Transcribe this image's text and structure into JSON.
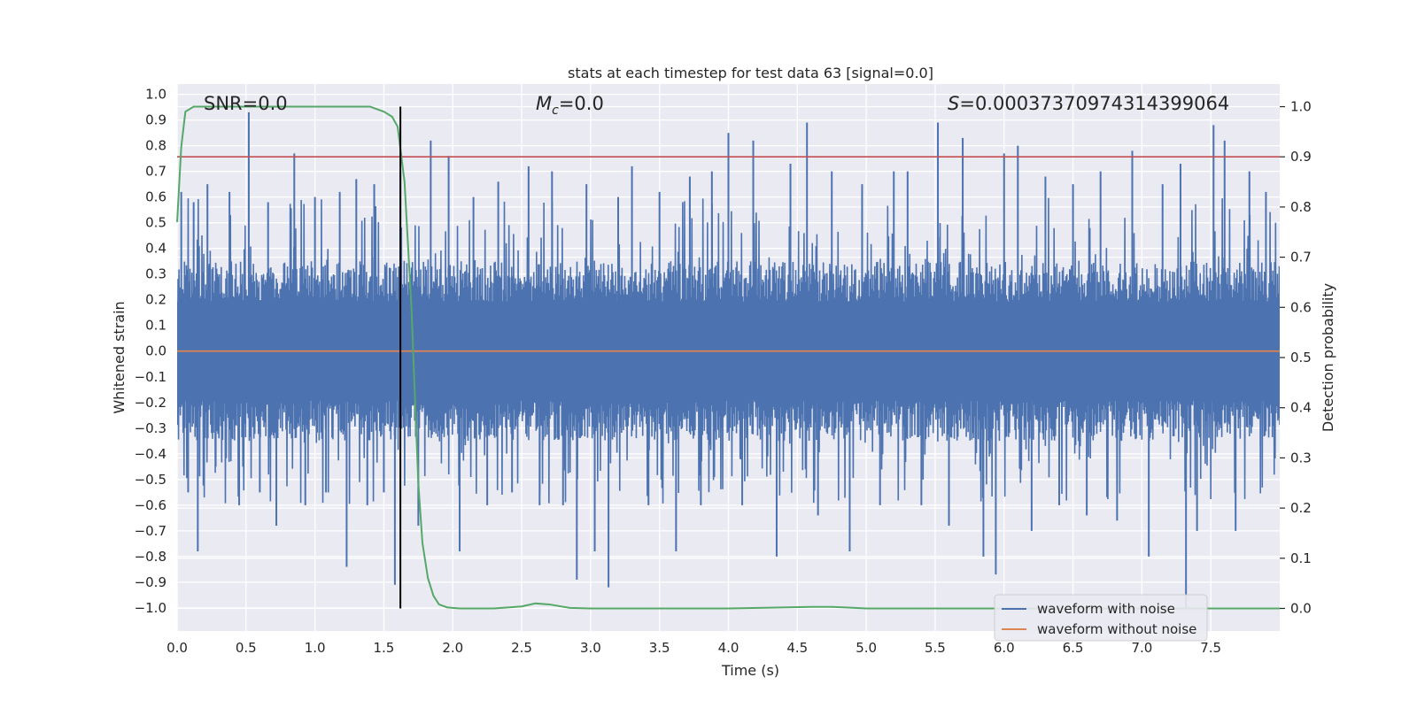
{
  "chart_data": {
    "type": "line",
    "title": "stats at each timestep for test data 63 [signal=0.0]",
    "xlabel": "Time (s)",
    "ylabel_left": "Whitened strain",
    "ylabel_right": "Detection probability",
    "xlim": [
      0.0,
      8.0
    ],
    "ylim_left": [
      -1.09,
      1.04
    ],
    "ylim_right": [
      -0.045,
      1.045
    ],
    "x_ticks": [
      "0.0",
      "0.5",
      "1.0",
      "1.5",
      "2.0",
      "2.5",
      "3.0",
      "3.5",
      "4.0",
      "4.5",
      "5.0",
      "5.5",
      "6.0",
      "6.5",
      "7.0",
      "7.5"
    ],
    "x_tick_values": [
      0.0,
      0.5,
      1.0,
      1.5,
      2.0,
      2.5,
      3.0,
      3.5,
      4.0,
      4.5,
      5.0,
      5.5,
      6.0,
      6.5,
      7.0,
      7.5
    ],
    "y_left_ticks": [
      "1.0",
      "0.9",
      "0.8",
      "0.7",
      "0.6",
      "0.5",
      "0.4",
      "0.3",
      "0.2",
      "0.1",
      "0.0",
      "−0.1",
      "−0.2",
      "−0.3",
      "−0.4",
      "−0.5",
      "−0.6",
      "−0.7",
      "−0.8",
      "−0.9",
      "−1.0"
    ],
    "y_left_tick_values": [
      1.0,
      0.9,
      0.8,
      0.7,
      0.6,
      0.5,
      0.4,
      0.3,
      0.2,
      0.1,
      0.0,
      -0.1,
      -0.2,
      -0.3,
      -0.4,
      -0.5,
      -0.6,
      -0.7,
      -0.8,
      -0.9,
      -1.0
    ],
    "y_right_ticks": [
      "1.0",
      "0.9",
      "0.8",
      "0.7",
      "0.6",
      "0.5",
      "0.4",
      "0.3",
      "0.2",
      "0.1",
      "0.0"
    ],
    "y_right_tick_values": [
      1.0,
      0.9,
      0.8,
      0.7,
      0.6,
      0.5,
      0.4,
      0.3,
      0.2,
      0.1,
      0.0
    ],
    "annotations": {
      "snr": "SNR=0.0",
      "mc_symbol": "M",
      "mc_subscript": "c",
      "mc_value": "=0.0",
      "s_symbol": "S",
      "s_value": "=0.0003737097431439906​4"
    },
    "series": [
      {
        "name": "waveform with noise",
        "axis": "left",
        "color": "#4c72b0",
        "envelope_core": 0.35,
        "spikes": [
          [
            0.03,
            0.62
          ],
          [
            0.08,
            -0.55
          ],
          [
            0.12,
            0.58
          ],
          [
            0.15,
            -0.78
          ],
          [
            0.22,
            0.65
          ],
          [
            0.28,
            -0.45
          ],
          [
            0.38,
            0.62
          ],
          [
            0.45,
            -0.6
          ],
          [
            0.52,
            0.93
          ],
          [
            0.6,
            -0.55
          ],
          [
            0.66,
            0.58
          ],
          [
            0.72,
            -0.68
          ],
          [
            0.85,
            0.77
          ],
          [
            0.93,
            -0.6
          ],
          [
            1.0,
            0.6
          ],
          [
            1.08,
            -0.55
          ],
          [
            1.18,
            0.62
          ],
          [
            1.23,
            -0.84
          ],
          [
            1.3,
            0.67
          ],
          [
            1.38,
            -0.6
          ],
          [
            1.43,
            0.65
          ],
          [
            1.5,
            -0.55
          ],
          [
            1.58,
            -0.91
          ],
          [
            1.62,
            0.7
          ],
          [
            1.75,
            -0.68
          ],
          [
            1.84,
            0.82
          ],
          [
            1.97,
            0.76
          ],
          [
            2.05,
            -0.78
          ],
          [
            2.15,
            0.6
          ],
          [
            2.25,
            -0.6
          ],
          [
            2.33,
            0.66
          ],
          [
            2.43,
            -0.55
          ],
          [
            2.55,
            0.72
          ],
          [
            2.63,
            -0.6
          ],
          [
            2.72,
            0.7
          ],
          [
            2.8,
            -0.6
          ],
          [
            2.9,
            -0.89
          ],
          [
            2.97,
            0.65
          ],
          [
            3.03,
            -0.78
          ],
          [
            3.13,
            -0.92
          ],
          [
            3.2,
            0.6
          ],
          [
            3.3,
            0.72
          ],
          [
            3.42,
            -0.6
          ],
          [
            3.5,
            0.62
          ],
          [
            3.62,
            -0.78
          ],
          [
            3.72,
            0.68
          ],
          [
            3.8,
            -0.6
          ],
          [
            3.88,
            0.7
          ],
          [
            4.0,
            0.85
          ],
          [
            4.1,
            -0.6
          ],
          [
            4.18,
            0.82
          ],
          [
            4.35,
            -0.8
          ],
          [
            4.45,
            0.73
          ],
          [
            4.57,
            0.89
          ],
          [
            4.65,
            -0.64
          ],
          [
            4.75,
            0.7
          ],
          [
            4.88,
            -0.78
          ],
          [
            4.97,
            0.65
          ],
          [
            5.1,
            -0.6
          ],
          [
            5.2,
            0.7
          ],
          [
            5.3,
            0.7
          ],
          [
            5.4,
            -0.6
          ],
          [
            5.52,
            0.89
          ],
          [
            5.6,
            -0.68
          ],
          [
            5.7,
            0.83
          ],
          [
            5.85,
            -0.8
          ],
          [
            5.94,
            -0.87
          ],
          [
            6.0,
            0.77
          ],
          [
            6.1,
            0.8
          ],
          [
            6.2,
            -0.7
          ],
          [
            6.3,
            0.68
          ],
          [
            6.4,
            -0.6
          ],
          [
            6.5,
            0.65
          ],
          [
            6.6,
            -0.64
          ],
          [
            6.7,
            0.7
          ],
          [
            6.82,
            -0.66
          ],
          [
            6.93,
            0.78
          ],
          [
            7.05,
            -0.8
          ],
          [
            7.15,
            0.65
          ],
          [
            7.28,
            0.73
          ],
          [
            7.32,
            -1.0
          ],
          [
            7.4,
            -0.7
          ],
          [
            7.52,
            0.88
          ],
          [
            7.6,
            0.82
          ],
          [
            7.68,
            -0.7
          ],
          [
            7.78,
            0.7
          ],
          [
            7.9,
            0.62
          ]
        ]
      },
      {
        "name": "waveform without noise",
        "axis": "left",
        "color": "#dd8452",
        "x": [
          0.0,
          8.0
        ],
        "y": [
          0.0,
          0.0
        ]
      },
      {
        "name": "detection probability",
        "axis": "right",
        "color": "#55a868",
        "x": [
          0.0,
          0.03,
          0.06,
          0.12,
          0.5,
          1.0,
          1.4,
          1.5,
          1.56,
          1.6,
          1.65,
          1.7,
          1.75,
          1.78,
          1.82,
          1.86,
          1.9,
          1.96,
          2.05,
          2.3,
          2.5,
          2.6,
          2.7,
          2.85,
          3.0,
          4.0,
          4.6,
          4.75,
          4.85,
          5.0,
          6.0,
          7.0,
          8.0
        ],
        "y": [
          0.77,
          0.92,
          0.99,
          1.0,
          1.0,
          1.0,
          1.0,
          0.99,
          0.98,
          0.96,
          0.85,
          0.6,
          0.25,
          0.13,
          0.06,
          0.025,
          0.008,
          0.002,
          0.0,
          0.0,
          0.004,
          0.01,
          0.008,
          0.001,
          0.0,
          0.0,
          0.003,
          0.003,
          0.002,
          0.0,
          0.0,
          0.0,
          0.0
        ]
      }
    ],
    "threshold": {
      "axis": "right",
      "value": 0.9,
      "color": "#c44e52"
    },
    "vertical_marker": {
      "x": 1.62,
      "color": "#000000"
    },
    "legend": {
      "location": "lower right",
      "entries": [
        {
          "label": "waveform with noise",
          "color": "#4c72b0"
        },
        {
          "label": "waveform without noise",
          "color": "#dd8452"
        }
      ]
    },
    "grid": true
  },
  "colors": {
    "plot_background": "#eaeaf2",
    "grid": "#ffffff"
  }
}
